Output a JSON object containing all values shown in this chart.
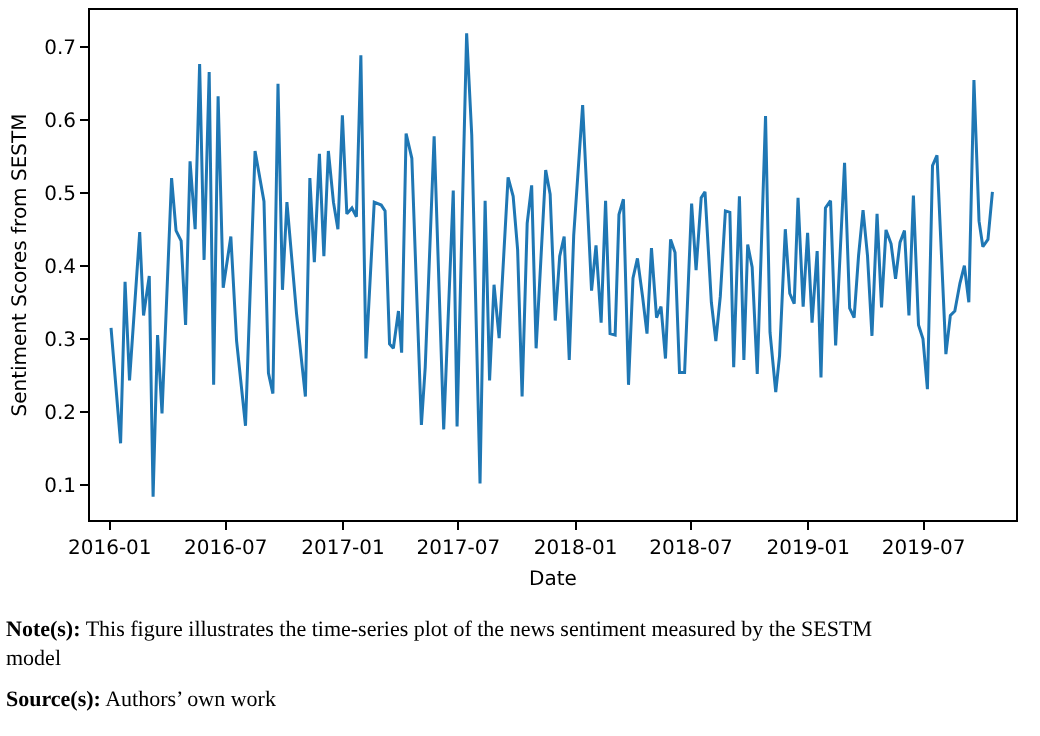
{
  "chart_data": {
    "type": "line",
    "xlabel": "Date",
    "ylabel": "Sentiment Scores from SESTM",
    "x": [
      "2016-01-03",
      "2016-01-18",
      "2016-01-25",
      "2016-02-01",
      "2016-02-17",
      "2016-02-23",
      "2016-03-03",
      "2016-03-09",
      "2016-03-16",
      "2016-03-23",
      "2016-04-07",
      "2016-04-14",
      "2016-04-22",
      "2016-04-29",
      "2016-05-06",
      "2016-05-14",
      "2016-05-21",
      "2016-05-28",
      "2016-06-05",
      "2016-06-12",
      "2016-06-19",
      "2016-06-27",
      "2016-07-09",
      "2016-07-18",
      "2016-08-01",
      "2016-08-16",
      "2016-08-30",
      "2016-09-06",
      "2016-09-13",
      "2016-09-21",
      "2016-09-28",
      "2016-10-05",
      "2016-10-20",
      "2016-11-03",
      "2016-11-10",
      "2016-11-17",
      "2016-11-25",
      "2016-12-02",
      "2016-12-09",
      "2016-12-17",
      "2016-12-24",
      "2016-12-31",
      "2017-01-07",
      "2017-01-15",
      "2017-01-22",
      "2017-01-29",
      "2017-02-06",
      "2017-02-19",
      "2017-03-02",
      "2017-03-08",
      "2017-03-15",
      "2017-03-21",
      "2017-03-29",
      "2017-04-03",
      "2017-04-10",
      "2017-04-19",
      "2017-05-04",
      "2017-05-10",
      "2017-05-24",
      "2017-06-08",
      "2017-06-23",
      "2017-06-29",
      "2017-07-14",
      "2017-07-22",
      "2017-08-04",
      "2017-08-12",
      "2017-08-19",
      "2017-08-26",
      "2017-09-03",
      "2017-09-17",
      "2017-09-25",
      "2017-10-02",
      "2017-10-09",
      "2017-10-17",
      "2017-10-24",
      "2017-10-31",
      "2017-11-15",
      "2017-11-22",
      "2017-11-30",
      "2017-12-07",
      "2017-12-14",
      "2017-12-22",
      "2017-12-29",
      "2018-01-12",
      "2018-01-20",
      "2018-01-26",
      "2018-02-02",
      "2018-02-10",
      "2018-02-17",
      "2018-02-24",
      "2018-03-04",
      "2018-03-10",
      "2018-03-17",
      "2018-03-25",
      "2018-04-01",
      "2018-04-08",
      "2018-04-16",
      "2018-04-23",
      "2018-04-30",
      "2018-05-08",
      "2018-05-15",
      "2018-05-22",
      "2018-05-30",
      "2018-06-06",
      "2018-06-13",
      "2018-06-21",
      "2018-07-02",
      "2018-07-09",
      "2018-07-17",
      "2018-07-23",
      "2018-08-02",
      "2018-08-09",
      "2018-08-16",
      "2018-08-24",
      "2018-08-31",
      "2018-09-06",
      "2018-09-15",
      "2018-09-22",
      "2018-09-28",
      "2018-10-05",
      "2018-10-13",
      "2018-10-26",
      "2018-11-02",
      "2018-11-11",
      "2018-11-17",
      "2018-11-26",
      "2018-12-03",
      "2018-12-10",
      "2018-12-16",
      "2018-12-24",
      "2018-12-31",
      "2019-01-07",
      "2019-01-15",
      "2019-01-21",
      "2019-01-28",
      "2019-02-05",
      "2019-02-13",
      "2019-02-27",
      "2019-03-07",
      "2019-03-14",
      "2019-03-21",
      "2019-03-28",
      "2019-04-04",
      "2019-04-11",
      "2019-04-19",
      "2019-04-26",
      "2019-05-03",
      "2019-05-11",
      "2019-05-18",
      "2019-05-25",
      "2019-06-01",
      "2019-06-08",
      "2019-06-15",
      "2019-06-23",
      "2019-06-30",
      "2019-07-07",
      "2019-07-15",
      "2019-07-22",
      "2019-08-05",
      "2019-08-12",
      "2019-08-19",
      "2019-08-27",
      "2019-09-03",
      "2019-09-10",
      "2019-09-18",
      "2019-09-26",
      "2019-10-02",
      "2019-10-10",
      "2019-10-17"
    ],
    "series": [
      {
        "color": "#1f77b4",
        "values": [
          0.315,
          0.157,
          0.378,
          0.243,
          0.446,
          0.332,
          0.386,
          0.084,
          0.305,
          0.198,
          0.52,
          0.448,
          0.434,
          0.319,
          0.543,
          0.45,
          0.676,
          0.408,
          0.665,
          0.237,
          0.632,
          0.37,
          0.44,
          0.297,
          0.181,
          0.557,
          0.488,
          0.253,
          0.225,
          0.649,
          0.367,
          0.487,
          0.335,
          0.221,
          0.52,
          0.405,
          0.553,
          0.413,
          0.557,
          0.487,
          0.45,
          0.606,
          0.471,
          0.479,
          0.467,
          0.688,
          0.273,
          0.487,
          0.483,
          0.475,
          0.293,
          0.287,
          0.338,
          0.281,
          0.581,
          0.547,
          0.182,
          0.261,
          0.577,
          0.176,
          0.503,
          0.18,
          0.718,
          0.579,
          0.102,
          0.489,
          0.243,
          0.374,
          0.301,
          0.521,
          0.495,
          0.422,
          0.221,
          0.458,
          0.51,
          0.287,
          0.531,
          0.498,
          0.325,
          0.413,
          0.44,
          0.271,
          0.442,
          0.62,
          0.475,
          0.366,
          0.428,
          0.322,
          0.489,
          0.307,
          0.305,
          0.47,
          0.491,
          0.237,
          0.383,
          0.41,
          0.358,
          0.307,
          0.424,
          0.329,
          0.344,
          0.273,
          0.436,
          0.418,
          0.254,
          0.254,
          0.485,
          0.394,
          0.493,
          0.501,
          0.35,
          0.297,
          0.358,
          0.475,
          0.473,
          0.261,
          0.495,
          0.271,
          0.429,
          0.398,
          0.252,
          0.605,
          0.309,
          0.227,
          0.277,
          0.45,
          0.362,
          0.348,
          0.493,
          0.344,
          0.445,
          0.322,
          0.42,
          0.247,
          0.479,
          0.489,
          0.291,
          0.541,
          0.342,
          0.329,
          0.414,
          0.476,
          0.414,
          0.304,
          0.471,
          0.343,
          0.449,
          0.43,
          0.382,
          0.432,
          0.448,
          0.332,
          0.496,
          0.319,
          0.3,
          0.231,
          0.537,
          0.551,
          0.279,
          0.332,
          0.338,
          0.376,
          0.4,
          0.35,
          0.654,
          0.461,
          0.426,
          0.436,
          0.501
        ]
      }
    ],
    "xlim": [
      "2015-12-01",
      "2019-11-23"
    ],
    "xticks": [
      {
        "value": "2016-01-01",
        "label": "2016-01"
      },
      {
        "value": "2016-07-01",
        "label": "2016-07"
      },
      {
        "value": "2017-01-01",
        "label": "2017-01"
      },
      {
        "value": "2017-07-01",
        "label": "2017-07"
      },
      {
        "value": "2018-01-01",
        "label": "2018-01"
      },
      {
        "value": "2018-07-01",
        "label": "2018-07"
      },
      {
        "value": "2019-01-01",
        "label": "2019-01"
      },
      {
        "value": "2019-07-01",
        "label": "2019-07"
      }
    ],
    "ylim": [
      0.052,
      0.75
    ],
    "yticks": [
      0.1,
      0.2,
      0.3,
      0.4,
      0.5,
      0.6,
      0.7
    ],
    "marker": "none",
    "line_style": "solid",
    "annotations": [
      "Note(s): This figure illustrates the time-series plot of the news sentiment measured by the SESTM model",
      "Source(s): Authors’ own work"
    ]
  }
}
